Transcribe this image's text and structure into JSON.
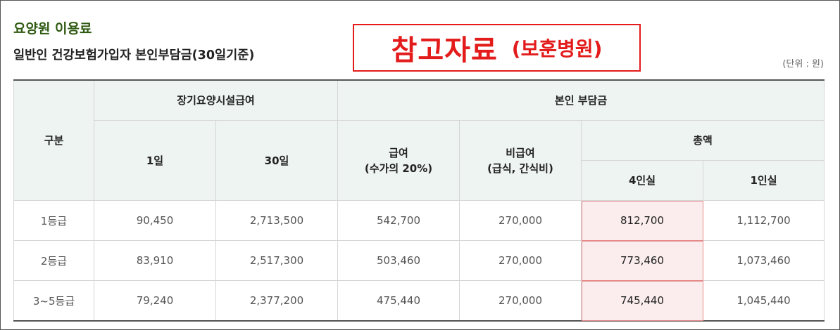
{
  "header": {
    "section_title": "요양원 이용료",
    "subtitle": "일반인 건강보험가입자 본인부담금(30일기준)",
    "reference_main": "참고자료",
    "reference_sub": "(보훈병원)",
    "unit": "(단위 : 원)"
  },
  "colors": {
    "title_green": "#2f5a12",
    "reference_red": "#e31b1b",
    "header_bg": "#eef4f1",
    "highlight_bg": "#fbeded"
  },
  "table": {
    "headers": {
      "category": "구분",
      "facility_benefit": "장기요양시설급여",
      "one_day": "1일",
      "thirty_days": "30일",
      "copay": "본인 부담금",
      "benefit_line1": "급여",
      "benefit_line2": "(수가의 20%)",
      "nonbenefit_line1": "비급여",
      "nonbenefit_line2": "(급식, 간식비)",
      "total": "총액",
      "four_person": "4인실",
      "one_person": "1인실"
    },
    "rows": [
      {
        "grade": "1등급",
        "day1": "90,450",
        "day30": "2,713,500",
        "benefit": "542,700",
        "nonbenefit": "270,000",
        "room4": "812,700",
        "room1": "1,112,700"
      },
      {
        "grade": "2등급",
        "day1": "83,910",
        "day30": "2,517,300",
        "benefit": "503,460",
        "nonbenefit": "270,000",
        "room4": "773,460",
        "room1": "1,073,460"
      },
      {
        "grade": "3~5등급",
        "day1": "79,240",
        "day30": "2,377,200",
        "benefit": "475,440",
        "nonbenefit": "270,000",
        "room4": "745,440",
        "room1": "1,045,440"
      }
    ]
  }
}
